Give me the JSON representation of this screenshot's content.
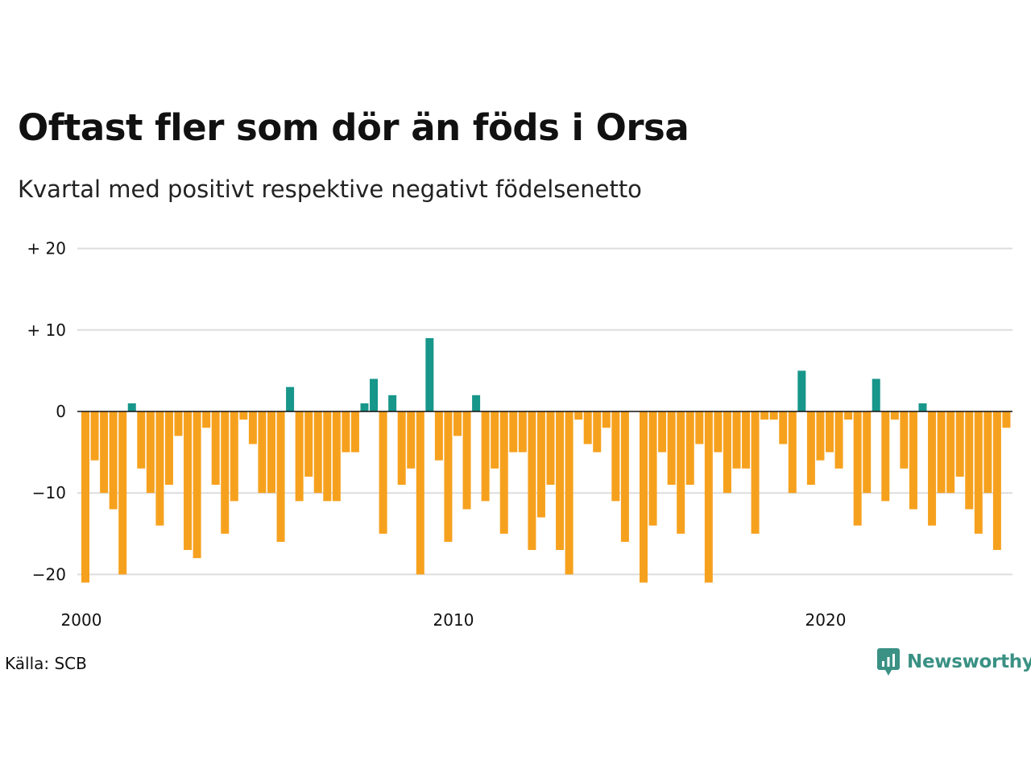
{
  "header": {
    "title": "Oftast fler som dör än föds i Orsa",
    "subtitle": "Kvartal med positivt respektive negativt födelsenetto"
  },
  "footer": {
    "source": "Källa: SCB",
    "brand": "Newsworthy",
    "brand_icon": "newsworthy-logo-icon"
  },
  "colors": {
    "positive": "#17968a",
    "negative": "#f6a11e",
    "grid": "#dddddd",
    "zero_line": "#111111",
    "brand": "#3a9184"
  },
  "chart_data": {
    "type": "bar",
    "title": "Oftast fler som dör än föds i Orsa",
    "subtitle": "Kvartal med positivt respektive negativt födelsenetto",
    "ylim": [
      -21,
      20
    ],
    "yticks": [
      {
        "value": 20,
        "label": "+ 20"
      },
      {
        "value": 10,
        "label": "+ 10"
      },
      {
        "value": 0,
        "label": "0"
      },
      {
        "value": -10,
        "label": "−10"
      },
      {
        "value": -20,
        "label": "−20"
      }
    ],
    "xticks": [
      {
        "index": 0,
        "label": "2000"
      },
      {
        "index": 40,
        "label": "2010"
      },
      {
        "index": 80,
        "label": "2020"
      }
    ],
    "start": "2000 Q1",
    "frequency": "quarterly",
    "values": [
      -21,
      -6,
      -10,
      -12,
      -20,
      1,
      -7,
      -10,
      -14,
      -9,
      -3,
      -17,
      -18,
      -2,
      -9,
      -15,
      -11,
      -1,
      -4,
      -10,
      -10,
      -16,
      3,
      -11,
      -8,
      -10,
      -11,
      -11,
      -5,
      -5,
      1,
      4,
      -15,
      2,
      -9,
      -7,
      -20,
      9,
      -6,
      -16,
      -3,
      -12,
      2,
      -11,
      -7,
      -15,
      -5,
      -5,
      -17,
      -13,
      -9,
      -17,
      -20,
      -1,
      -4,
      -5,
      -2,
      -11,
      -16,
      0,
      -21,
      -14,
      -5,
      -9,
      -15,
      -9,
      -4,
      -21,
      -5,
      -10,
      -7,
      -7,
      -15,
      -1,
      -1,
      -4,
      -10,
      5,
      -9,
      -6,
      -5,
      -7,
      -1,
      -14,
      -10,
      4,
      -11,
      -1,
      -7,
      -12,
      1,
      -14,
      -10,
      -10,
      -8,
      -12,
      -15,
      -10,
      -17,
      -2
    ]
  }
}
